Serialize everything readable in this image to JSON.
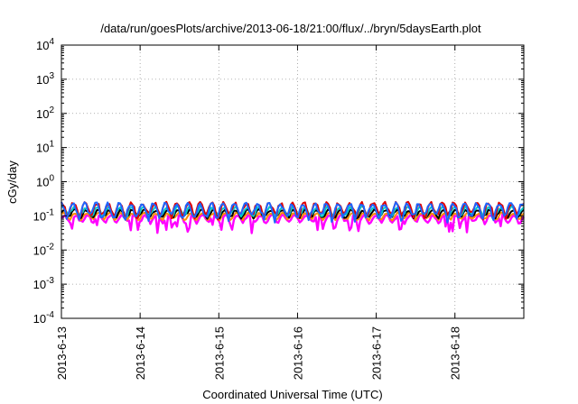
{
  "chart_data": {
    "type": "line",
    "title": "/data/run/goesPlots/archive/2013-06-18/21:00/flux/../bryn/5daysEarth.plot",
    "xlabel": "Coordinated Universal Time (UTC)",
    "ylabel": "cGy/day",
    "y_scale": "log",
    "ylim": [
      0.0001,
      10000
    ],
    "xlim": [
      "2013-06-13 00:00",
      "2013-06-18 21:00"
    ],
    "x_ticks": [
      "2013-6-13",
      "2013-6-14",
      "2013-6-15",
      "2013-6-16",
      "2013-6-17",
      "2013-6-18"
    ],
    "y_ticks": [
      {
        "base": "10",
        "exp": "-4",
        "value": 0.0001
      },
      {
        "base": "10",
        "exp": "-3",
        "value": 0.001
      },
      {
        "base": "10",
        "exp": "-2",
        "value": 0.01
      },
      {
        "base": "10",
        "exp": "-1",
        "value": 0.1
      },
      {
        "base": "10",
        "exp": "0",
        "value": 1
      },
      {
        "base": "10",
        "exp": "1",
        "value": 10
      },
      {
        "base": "10",
        "exp": "2",
        "value": 100
      },
      {
        "base": "10",
        "exp": "3",
        "value": 1000
      },
      {
        "base": "10",
        "exp": "4",
        "value": 10000
      }
    ],
    "grid": true,
    "legend": "none",
    "series_style": "dense diurnal oscillation, roughly 8 cycles per day",
    "series": [
      {
        "color": "#ff00ff",
        "base": 0.085,
        "amplitude": 0.3,
        "dips": true
      },
      {
        "color": "#ff8c00",
        "base": 0.1,
        "amplitude": 0.25,
        "dips": false
      },
      {
        "color": "#000000",
        "base": 0.12,
        "amplitude": 0.3,
        "dips": false
      },
      {
        "color": "#00c8c8",
        "base": 0.14,
        "amplitude": 0.35,
        "dips": false
      },
      {
        "color": "#e00000",
        "base": 0.17,
        "amplitude": 0.5,
        "dips": false
      },
      {
        "color": "#1e64ff",
        "base": 0.16,
        "amplitude": 0.55,
        "dips": false
      }
    ]
  }
}
